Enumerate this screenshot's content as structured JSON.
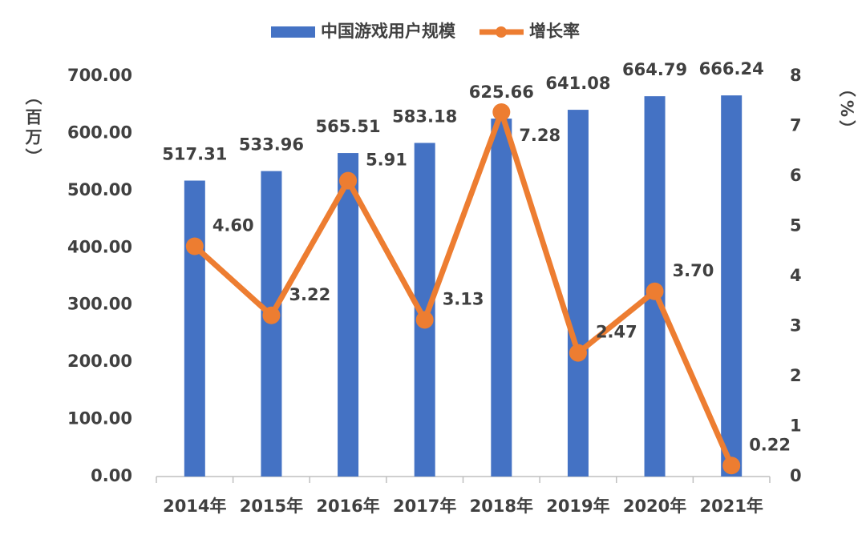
{
  "chart_data": {
    "type": "bar-line",
    "categories": [
      "2014年",
      "2015年",
      "2016年",
      "2017年",
      "2018年",
      "2019年",
      "2020年",
      "2021年"
    ],
    "series": [
      {
        "name": "中国游戏用户规模",
        "type": "bar",
        "color": "#4472c4",
        "values": [
          517.31,
          533.96,
          565.51,
          583.18,
          625.66,
          641.08,
          664.79,
          666.24
        ]
      },
      {
        "name": "增长率",
        "type": "line",
        "axis": "y2",
        "color": "#ed7d31",
        "values": [
          4.6,
          3.22,
          5.91,
          3.13,
          7.28,
          2.47,
          3.7,
          0.22
        ],
        "value_labels": [
          "4.60",
          "3.22",
          "5.91",
          "3.13",
          "7.28",
          "2.47",
          "3.70",
          "0.22"
        ]
      }
    ],
    "y_label": "（百万）",
    "y2_label": "（%）",
    "ylim": [
      0,
      700
    ],
    "yticks": [
      {
        "value": 0,
        "label": "0.00"
      },
      {
        "value": 100,
        "label": "100.00"
      },
      {
        "value": 200,
        "label": "200.00"
      },
      {
        "value": 300,
        "label": "300.00"
      },
      {
        "value": 400,
        "label": "400.00"
      },
      {
        "value": 500,
        "label": "500.00"
      },
      {
        "value": 600,
        "label": "600.00"
      },
      {
        "value": 700,
        "label": "700.00"
      }
    ],
    "y2lim": [
      0,
      8
    ],
    "y2ticks": [
      0,
      1,
      2,
      3,
      4,
      5,
      6,
      7,
      8
    ],
    "legend": "top",
    "grid": false
  }
}
